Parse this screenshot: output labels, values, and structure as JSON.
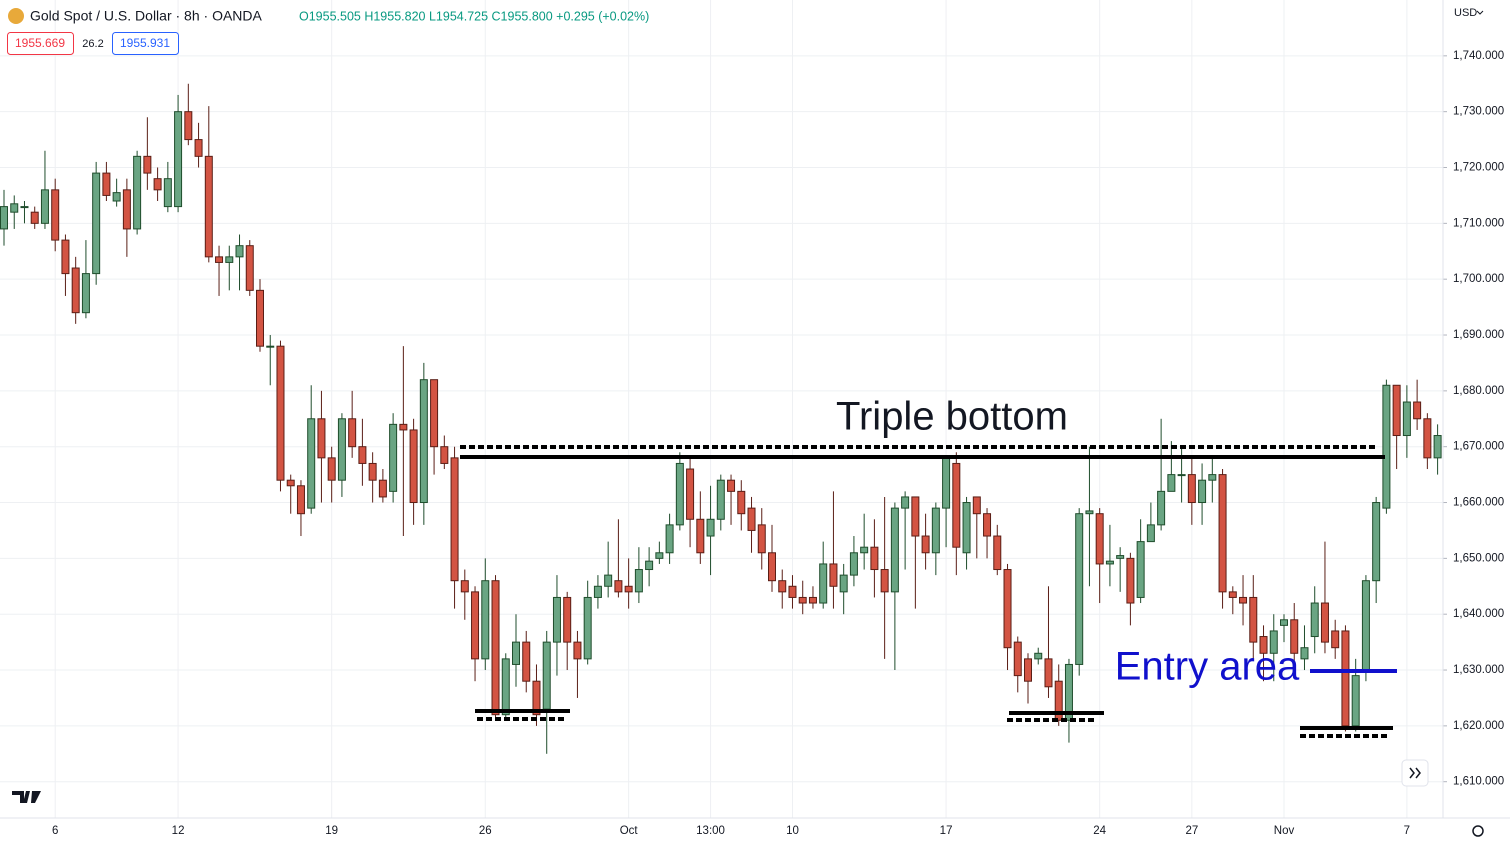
{
  "chart_data": {
    "type": "candlestick",
    "title": "Gold Spot / U.S. Dollar · 8h · OANDA",
    "ohlc_summary": "O1955.505 H1955.820 L1954.725 C1955.800 +0.295 (+0.02%)",
    "bid": "1955.669",
    "spread": "26.2",
    "ask": "1955.931",
    "currency": "USD",
    "annotations": [
      "Triple bottom",
      "Entry area"
    ],
    "up_color": "#6aa583",
    "down_color": "#d35443",
    "categories": [
      null,
      null,
      null,
      null,
      null,
      "6",
      null,
      null,
      null,
      null,
      null,
      null,
      null,
      null,
      null,
      null,
      null,
      "12",
      null,
      null,
      null,
      null,
      null,
      null,
      null,
      null,
      null,
      null,
      null,
      null,
      null,
      null,
      "19",
      null,
      null,
      null,
      null,
      null,
      null,
      null,
      null,
      null,
      null,
      null,
      null,
      null,
      null,
      "26",
      null,
      null,
      null,
      null,
      null,
      null,
      null,
      null,
      null,
      null,
      null,
      null,
      null,
      "Oct",
      null,
      null,
      null,
      null,
      null,
      null,
      null,
      "13:00",
      null,
      null,
      null,
      null,
      null,
      null,
      null,
      "10",
      null,
      null,
      null,
      null,
      null,
      null,
      null,
      null,
      null,
      null,
      null,
      null,
      null,
      null,
      "17",
      null,
      null,
      null,
      null,
      null,
      null,
      null,
      null,
      null,
      null,
      null,
      null,
      null,
      null,
      "24",
      null,
      null,
      null,
      null,
      null,
      null,
      null,
      null,
      "27",
      null,
      null,
      null,
      null,
      null,
      null,
      null,
      null,
      "Nov",
      null,
      null,
      null,
      null,
      null,
      null,
      null,
      null,
      null,
      null,
      null,
      "7",
      null,
      null,
      null
    ],
    "open": [
      1709,
      1712,
      1713,
      1712,
      1710,
      1716,
      1707,
      1702,
      1694,
      1701,
      1719,
      1714,
      1716,
      1709,
      1722,
      1718,
      1713,
      1713,
      1730,
      1725,
      1722,
      1704,
      1703,
      1704,
      1706,
      1698,
      1688,
      1688,
      1664,
      1663,
      1659,
      1675,
      1668,
      1664,
      1675,
      1670,
      1667,
      1664,
      1662,
      1674,
      1673,
      1660,
      1682,
      1670,
      1668,
      1646,
      1644,
      1632,
      1646,
      1622,
      1631,
      1635,
      1628,
      1623,
      1635,
      1643,
      1635,
      1632,
      1643,
      1645,
      1646,
      1645,
      1644,
      1648,
      1650,
      1651,
      1656,
      1666,
      1657,
      1654,
      1657,
      1664,
      1662,
      1659,
      1656,
      1651,
      1646,
      1645,
      1643,
      1643,
      1642,
      1649,
      1644,
      1647,
      1651,
      1652,
      1648,
      1644,
      1659,
      1661,
      1654,
      1651,
      1659,
      1667,
      1651,
      1661,
      1658,
      1654,
      1648,
      1635,
      1632,
      1632,
      1632,
      1628,
      1621,
      1631,
      1658,
      1658,
      1649,
      1650,
      1650,
      1643,
      1653,
      1656,
      1662,
      1665,
      1665,
      1660,
      1664,
      1665,
      1644,
      1643,
      1643,
      1636,
      1633,
      1638,
      1639,
      1632,
      1636,
      1642,
      1637,
      1637,
      1620,
      1630,
      1646,
      1659,
      1681,
      1672,
      1678,
      1675,
      1668
    ],
    "high": [
      1716,
      1715,
      1714,
      1713,
      1723,
      1718,
      1708,
      1704,
      1707,
      1721,
      1721,
      1718,
      1718,
      1723,
      1729,
      1720,
      1721,
      1733,
      1735,
      1728,
      1731,
      1706,
      1706,
      1708,
      1707,
      1700,
      1690,
      1689,
      1665,
      1664,
      1681,
      1680,
      1670,
      1676,
      1680,
      1675,
      1669,
      1666,
      1676,
      1688,
      1675,
      1685,
      1682,
      1672,
      1670,
      1648,
      1645,
      1650,
      1647,
      1633,
      1640,
      1637,
      1631,
      1637,
      1647,
      1644,
      1637,
      1646,
      1647,
      1653,
      1657,
      1650,
      1652,
      1652,
      1653,
      1658,
      1669,
      1668,
      1662,
      1663,
      1665,
      1665,
      1664,
      1661,
      1659,
      1656,
      1648,
      1647,
      1646,
      1645,
      1653,
      1662,
      1649,
      1654,
      1658,
      1657,
      1661,
      1660,
      1662,
      1661,
      1658,
      1660,
      1668,
      1669,
      1661,
      1661,
      1659,
      1656,
      1649,
      1636,
      1633,
      1634,
      1645,
      1631,
      1632,
      1659,
      1670,
      1659,
      1656,
      1652,
      1651,
      1657,
      1660,
      1675,
      1671,
      1670,
      1668,
      1667,
      1668,
      1666,
      1645,
      1647,
      1647,
      1638,
      1640,
      1640,
      1642,
      1638,
      1645,
      1653,
      1639,
      1638,
      1632,
      1647,
      1661,
      1682,
      1681,
      1681,
      1682,
      1676,
      1674
    ],
    "low": [
      1706,
      1709,
      1710,
      1709,
      1709,
      1705,
      1697,
      1692,
      1693,
      1699,
      1714,
      1713,
      1704,
      1708,
      1716,
      1714,
      1712,
      1712,
      1724,
      1720,
      1703,
      1697,
      1698,
      1698,
      1697,
      1687,
      1681,
      1662,
      1658,
      1654,
      1658,
      1660,
      1660,
      1661,
      1668,
      1663,
      1660,
      1660,
      1660,
      1654,
      1656,
      1656,
      1665,
      1666,
      1641,
      1639,
      1628,
      1630,
      1621,
      1621,
      1627,
      1626,
      1620,
      1615,
      1629,
      1630,
      1625,
      1631,
      1641,
      1643,
      1643,
      1641,
      1642,
      1645,
      1649,
      1649,
      1655,
      1652,
      1649,
      1647,
      1655,
      1656,
      1655,
      1651,
      1648,
      1644,
      1641,
      1641,
      1640,
      1641,
      1641,
      1641,
      1640,
      1645,
      1648,
      1643,
      1632,
      1630,
      1648,
      1641,
      1648,
      1647,
      1652,
      1647,
      1648,
      1650,
      1650,
      1647,
      1630,
      1626,
      1624,
      1631,
      1625,
      1620,
      1617,
      1629,
      1645,
      1642,
      1645,
      1644,
      1638,
      1642,
      1653,
      1655,
      1662,
      1660,
      1656,
      1656,
      1660,
      1641,
      1640,
      1638,
      1632,
      1628,
      1628,
      1635,
      1630,
      1630,
      1633,
      1633,
      1632,
      1619,
      1619,
      1628,
      1642,
      1658,
      1666,
      1668,
      1673,
      1666,
      1665
    ],
    "close": [
      1713,
      1713.5,
      1713,
      1710,
      1716,
      1707,
      1701,
      1694,
      1701,
      1719,
      1715,
      1715.5,
      1709,
      1722,
      1719,
      1716,
      1718,
      1730,
      1725,
      1722,
      1704,
      1703,
      1704,
      1706,
      1698,
      1688,
      1688,
      1664,
      1663,
      1658,
      1675,
      1668,
      1664,
      1675,
      1670,
      1667,
      1664,
      1661,
      1674,
      1673,
      1660,
      1682,
      1670,
      1667,
      1646,
      1644,
      1632,
      1646,
      1622,
      1632,
      1635,
      1628,
      1622,
      1635,
      1643,
      1635,
      1632,
      1643,
      1645,
      1647,
      1644,
      1644,
      1648,
      1649.5,
      1651,
      1656,
      1667,
      1657,
      1651,
      1657,
      1664,
      1662,
      1658,
      1655,
      1651,
      1646,
      1644,
      1643,
      1642,
      1642,
      1649,
      1645,
      1647,
      1651,
      1652,
      1648,
      1644,
      1659,
      1661,
      1654,
      1651,
      1659,
      1668,
      1652,
      1660,
      1658,
      1654,
      1648,
      1634,
      1629,
      1628,
      1633,
      1627,
      1621,
      1631,
      1658,
      1658.5,
      1649,
      1649.5,
      1650.5,
      1642,
      1653,
      1656,
      1662,
      1665,
      1665,
      1660,
      1664,
      1665,
      1644,
      1643,
      1642,
      1635,
      1633,
      1637,
      1639,
      1633,
      1634,
      1642,
      1635,
      1634,
      1620,
      1629,
      1646,
      1660,
      1681,
      1672,
      1678,
      1675,
      1668,
      1672
    ],
    "ylim": [
      1603.5,
      1750
    ],
    "yticks": [
      {
        "value": 1610,
        "label": "1,610.000"
      },
      {
        "value": 1620,
        "label": "1,620.000"
      },
      {
        "value": 1630,
        "label": "1,630.000"
      },
      {
        "value": 1640,
        "label": "1,640.000"
      },
      {
        "value": 1650,
        "label": "1,650.000"
      },
      {
        "value": 1660,
        "label": "1,660.000"
      },
      {
        "value": 1670,
        "label": "1,670.000"
      },
      {
        "value": 1680,
        "label": "1,680.000"
      },
      {
        "value": 1690,
        "label": "1,690.000"
      },
      {
        "value": 1700,
        "label": "1,700.000"
      },
      {
        "value": 1710,
        "label": "1,710.000"
      },
      {
        "value": 1720,
        "label": "1,720.000"
      },
      {
        "value": 1730,
        "label": "1,730.000"
      },
      {
        "value": 1740,
        "label": "1,740.000"
      }
    ],
    "grid": true
  }
}
